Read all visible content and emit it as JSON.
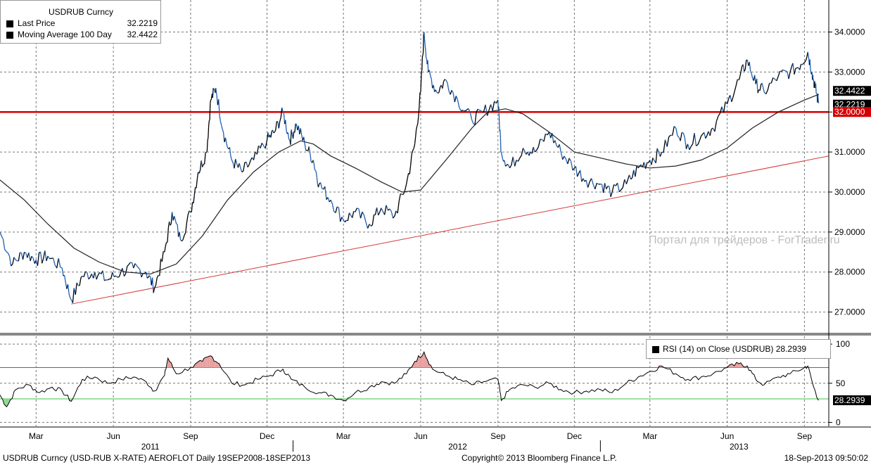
{
  "legend": {
    "title": "USDRUB Curncy",
    "rows": [
      {
        "name": "Last Price",
        "value": "32.2219"
      },
      {
        "name": "Moving Average 100 Day",
        "value": "32.4422"
      }
    ]
  },
  "rsi_legend": {
    "label": "RSI (14) on Close (USDRUB)",
    "value": "28.2939"
  },
  "watermark": "Портал для трейдеров - ForTrader.ru",
  "footer": {
    "left": "USDRUB Curncy (USD-RUB X-RATE) AEROFLOT  Daily 19SEP2008-18SEP2013",
    "center": "Copyright© 2013 Bloomberg Finance L.P.",
    "right": "18-Sep-2013 09:50:02"
  },
  "colors": {
    "price_up": "#000000",
    "price_down": "#1f5fb0",
    "ma": "#222222",
    "level": "#d40000",
    "trend": "#d43a3a",
    "rsi": "#000000",
    "rsi_over": "#e8a0a0",
    "rsi_under": "#90d890",
    "rsi_upper_line": "#c04040",
    "rsi_lower_line": "#40c040"
  },
  "chart_data": [
    {
      "type": "line",
      "name": "price",
      "x_labels": [
        {
          "label": "Mar",
          "date": "2011-03-01"
        },
        {
          "label": "Jun",
          "date": "2011-06-01"
        },
        {
          "label": "Sep",
          "date": "2011-09-01"
        },
        {
          "label": "Dec",
          "date": "2011-12-01"
        },
        {
          "label": "Mar",
          "date": "2012-03-01"
        },
        {
          "label": "Jun",
          "date": "2012-06-01"
        },
        {
          "label": "Sep",
          "date": "2012-09-01"
        },
        {
          "label": "Dec",
          "date": "2012-12-01"
        },
        {
          "label": "Mar",
          "date": "2013-03-01"
        },
        {
          "label": "Jun",
          "date": "2013-06-01"
        },
        {
          "label": "Sep",
          "date": "2013-09-01"
        }
      ],
      "years": [
        {
          "label": "2011",
          "date": "2011-07-15"
        },
        {
          "label": "2012",
          "date": "2012-07-15"
        },
        {
          "label": "2013",
          "date": "2013-06-15"
        }
      ],
      "xlim": [
        "2011-01-17",
        "2013-09-30"
      ],
      "ylim": [
        26.5,
        34.8
      ],
      "y_ticks": [
        "27.0000",
        "28.0000",
        "29.0000",
        "30.0000",
        "31.0000",
        "32.0000",
        "33.0000",
        "34.0000"
      ],
      "grid": true,
      "series": [
        {
          "name": "Last Price",
          "points": [
            [
              "2011-01-17",
              29.0
            ],
            [
              "2011-02-01",
              28.2
            ],
            [
              "2011-02-15",
              28.5
            ],
            [
              "2011-03-01",
              28.3
            ],
            [
              "2011-03-15",
              28.4
            ],
            [
              "2011-04-01",
              28.1
            ],
            [
              "2011-04-12",
              27.3
            ],
            [
              "2011-04-25",
              27.9
            ],
            [
              "2011-05-10",
              28.0
            ],
            [
              "2011-05-25",
              27.8
            ],
            [
              "2011-06-10",
              28.0
            ],
            [
              "2011-06-25",
              28.1
            ],
            [
              "2011-07-10",
              28.0
            ],
            [
              "2011-07-20",
              27.6
            ],
            [
              "2011-08-01",
              28.5
            ],
            [
              "2011-08-10",
              29.5
            ],
            [
              "2011-08-20",
              28.8
            ],
            [
              "2011-09-01",
              29.5
            ],
            [
              "2011-09-10",
              30.5
            ],
            [
              "2011-09-20",
              31.0
            ],
            [
              "2011-09-25",
              32.3
            ],
            [
              "2011-10-01",
              32.6
            ],
            [
              "2011-10-10",
              31.5
            ],
            [
              "2011-10-20",
              30.8
            ],
            [
              "2011-11-01",
              30.5
            ],
            [
              "2011-11-15",
              30.8
            ],
            [
              "2011-12-01",
              31.3
            ],
            [
              "2011-12-10",
              31.5
            ],
            [
              "2011-12-20",
              32.0
            ],
            [
              "2011-12-28",
              31.3
            ],
            [
              "2012-01-05",
              31.7
            ],
            [
              "2012-01-15",
              31.2
            ],
            [
              "2012-01-25",
              30.8
            ],
            [
              "2012-02-01",
              30.2
            ],
            [
              "2012-02-15",
              29.8
            ],
            [
              "2012-03-01",
              29.3
            ],
            [
              "2012-03-15",
              29.5
            ],
            [
              "2012-04-01",
              29.2
            ],
            [
              "2012-04-15",
              29.6
            ],
            [
              "2012-05-01",
              29.4
            ],
            [
              "2012-05-15",
              30.2
            ],
            [
              "2012-05-25",
              31.2
            ],
            [
              "2012-06-01",
              32.5
            ],
            [
              "2012-06-05",
              34.0
            ],
            [
              "2012-06-10",
              33.0
            ],
            [
              "2012-06-20",
              32.5
            ],
            [
              "2012-07-01",
              32.8
            ],
            [
              "2012-07-15",
              32.3
            ],
            [
              "2012-08-01",
              31.8
            ],
            [
              "2012-08-15",
              32.0
            ],
            [
              "2012-09-01",
              32.3
            ],
            [
              "2012-09-05",
              31.0
            ],
            [
              "2012-09-15",
              30.6
            ],
            [
              "2012-10-01",
              31.1
            ],
            [
              "2012-10-15",
              31.0
            ],
            [
              "2012-11-01",
              31.5
            ],
            [
              "2012-11-15",
              31.0
            ],
            [
              "2012-12-01",
              30.6
            ],
            [
              "2012-12-15",
              30.3
            ],
            [
              "2013-01-01",
              30.2
            ],
            [
              "2013-01-15",
              30.0
            ],
            [
              "2013-02-01",
              30.2
            ],
            [
              "2013-02-15",
              30.6
            ],
            [
              "2013-03-01",
              30.8
            ],
            [
              "2013-03-15",
              31.0
            ],
            [
              "2013-04-01",
              31.6
            ],
            [
              "2013-04-15",
              31.2
            ],
            [
              "2013-05-01",
              31.4
            ],
            [
              "2013-05-15",
              31.6
            ],
            [
              "2013-06-01",
              32.2
            ],
            [
              "2013-06-15",
              32.8
            ],
            [
              "2013-06-25",
              33.3
            ],
            [
              "2013-07-05",
              32.7
            ],
            [
              "2013-07-15",
              32.5
            ],
            [
              "2013-08-01",
              32.9
            ],
            [
              "2013-08-15",
              33.0
            ],
            [
              "2013-08-28",
              33.2
            ],
            [
              "2013-09-05",
              33.5
            ],
            [
              "2013-09-10",
              33.0
            ],
            [
              "2013-09-14",
              32.6
            ],
            [
              "2013-09-18",
              32.22
            ]
          ]
        },
        {
          "name": "Moving Average 100 Day",
          "points": [
            [
              "2011-01-17",
              30.3
            ],
            [
              "2011-02-15",
              29.8
            ],
            [
              "2011-03-15",
              29.2
            ],
            [
              "2011-04-15",
              28.6
            ],
            [
              "2011-05-15",
              28.25
            ],
            [
              "2011-06-15",
              28.0
            ],
            [
              "2011-07-15",
              27.95
            ],
            [
              "2011-08-15",
              28.2
            ],
            [
              "2011-09-15",
              28.9
            ],
            [
              "2011-10-15",
              29.8
            ],
            [
              "2011-11-15",
              30.5
            ],
            [
              "2011-12-15",
              31.0
            ],
            [
              "2012-01-10",
              31.28
            ],
            [
              "2012-01-25",
              31.2
            ],
            [
              "2012-02-15",
              30.9
            ],
            [
              "2012-03-15",
              30.6
            ],
            [
              "2012-04-15",
              30.25
            ],
            [
              "2012-05-10",
              30.0
            ],
            [
              "2012-06-01",
              30.05
            ],
            [
              "2012-07-01",
              30.8
            ],
            [
              "2012-08-01",
              31.6
            ],
            [
              "2012-08-20",
              32.0
            ],
            [
              "2012-09-10",
              32.08
            ],
            [
              "2012-10-01",
              31.95
            ],
            [
              "2012-11-01",
              31.5
            ],
            [
              "2012-12-01",
              31.0
            ],
            [
              "2013-01-01",
              30.85
            ],
            [
              "2013-02-01",
              30.7
            ],
            [
              "2013-03-01",
              30.6
            ],
            [
              "2013-04-01",
              30.65
            ],
            [
              "2013-05-01",
              30.8
            ],
            [
              "2013-06-01",
              31.1
            ],
            [
              "2013-07-01",
              31.6
            ],
            [
              "2013-08-01",
              32.0
            ],
            [
              "2013-09-01",
              32.3
            ],
            [
              "2013-09-18",
              32.44
            ]
          ]
        }
      ],
      "horizontal_level": {
        "value": 32.0,
        "label": "32.0000"
      },
      "trendline": {
        "from": [
          "2011-04-12",
          27.2
        ],
        "to": [
          "2013-09-30",
          30.9
        ]
      },
      "last_value_labels": [
        "32.4422",
        "32.2219"
      ]
    },
    {
      "type": "line",
      "name": "rsi",
      "ylim": [
        -5,
        110
      ],
      "y_ticks": [
        "0",
        "50",
        "100"
      ],
      "upper_line": 70,
      "lower_line": 30,
      "series": [
        {
          "name": "RSI (14) on Close (USDRUB)",
          "points": [
            [
              "2011-01-17",
              35
            ],
            [
              "2011-01-25",
              20
            ],
            [
              "2011-02-05",
              42
            ],
            [
              "2011-02-20",
              48
            ],
            [
              "2011-03-05",
              38
            ],
            [
              "2011-03-20",
              45
            ],
            [
              "2011-04-01",
              40
            ],
            [
              "2011-04-12",
              27
            ],
            [
              "2011-04-25",
              55
            ],
            [
              "2011-05-10",
              58
            ],
            [
              "2011-05-25",
              50
            ],
            [
              "2011-06-10",
              55
            ],
            [
              "2011-06-25",
              58
            ],
            [
              "2011-07-10",
              52
            ],
            [
              "2011-07-20",
              40
            ],
            [
              "2011-08-01",
              60
            ],
            [
              "2011-08-05",
              82
            ],
            [
              "2011-08-15",
              62
            ],
            [
              "2011-09-01",
              70
            ],
            [
              "2011-09-15",
              78
            ],
            [
              "2011-09-25",
              85
            ],
            [
              "2011-10-05",
              75
            ],
            [
              "2011-10-20",
              50
            ],
            [
              "2011-11-05",
              48
            ],
            [
              "2011-11-20",
              55
            ],
            [
              "2011-12-05",
              60
            ],
            [
              "2011-12-20",
              68
            ],
            [
              "2011-12-30",
              55
            ],
            [
              "2012-01-15",
              45
            ],
            [
              "2012-02-01",
              38
            ],
            [
              "2012-02-15",
              35
            ],
            [
              "2012-03-01",
              28
            ],
            [
              "2012-03-15",
              38
            ],
            [
              "2012-04-01",
              45
            ],
            [
              "2012-04-15",
              52
            ],
            [
              "2012-05-01",
              50
            ],
            [
              "2012-05-15",
              62
            ],
            [
              "2012-05-25",
              78
            ],
            [
              "2012-06-05",
              90
            ],
            [
              "2012-06-15",
              68
            ],
            [
              "2012-07-01",
              60
            ],
            [
              "2012-07-15",
              55
            ],
            [
              "2012-08-01",
              48
            ],
            [
              "2012-08-15",
              52
            ],
            [
              "2012-09-01",
              55
            ],
            [
              "2012-09-05",
              28
            ],
            [
              "2012-09-15",
              42
            ],
            [
              "2012-10-01",
              48
            ],
            [
              "2012-10-15",
              45
            ],
            [
              "2012-11-01",
              50
            ],
            [
              "2012-11-15",
              42
            ],
            [
              "2012-12-01",
              38
            ],
            [
              "2012-12-15",
              40
            ],
            [
              "2013-01-01",
              42
            ],
            [
              "2013-01-15",
              38
            ],
            [
              "2013-02-01",
              50
            ],
            [
              "2013-02-15",
              58
            ],
            [
              "2013-03-01",
              65
            ],
            [
              "2013-03-15",
              72
            ],
            [
              "2013-04-01",
              62
            ],
            [
              "2013-04-15",
              55
            ],
            [
              "2013-05-01",
              58
            ],
            [
              "2013-05-15",
              62
            ],
            [
              "2013-06-01",
              70
            ],
            [
              "2013-06-15",
              75
            ],
            [
              "2013-06-25",
              72
            ],
            [
              "2013-07-05",
              55
            ],
            [
              "2013-07-15",
              48
            ],
            [
              "2013-08-01",
              58
            ],
            [
              "2013-08-15",
              62
            ],
            [
              "2013-09-01",
              70
            ],
            [
              "2013-09-05",
              72
            ],
            [
              "2013-09-12",
              45
            ],
            [
              "2013-09-18",
              28.29
            ]
          ]
        }
      ],
      "last_value_label": "28.2939"
    }
  ]
}
